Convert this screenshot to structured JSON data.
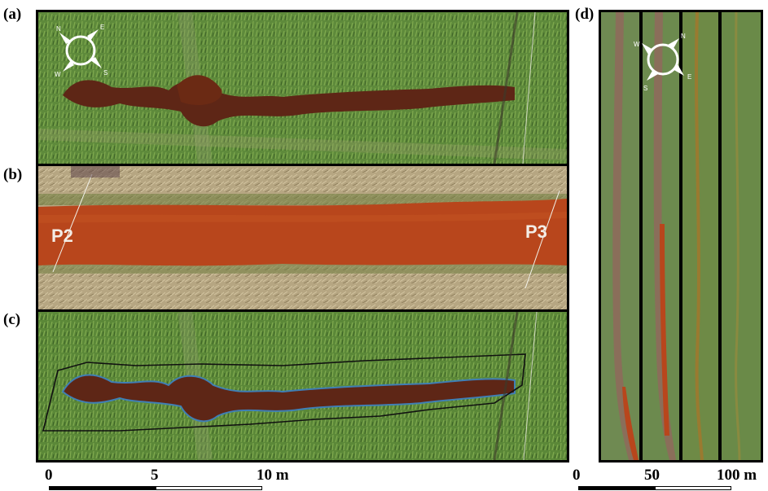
{
  "panel_labels": {
    "a": "(a)",
    "b": "(b)",
    "c": "(c)",
    "d": "(d)"
  },
  "point_labels": {
    "p2": "P2",
    "p3": "P3"
  },
  "compass": {
    "n": "N",
    "e": "E",
    "s": "S",
    "w": "W"
  },
  "scalebar_left": {
    "t0": "0",
    "t1": "5",
    "t2": "10 m"
  },
  "scalebar_right": {
    "t0": "0",
    "t1": "50",
    "t2": "100 m"
  },
  "colors": {
    "grass": "#5f8a3a",
    "water": "#b8461c",
    "water_dark": "#5e2616",
    "dry": "#b8a884",
    "outline_black": "#111111",
    "outline_blue": "#3f7fb5"
  }
}
